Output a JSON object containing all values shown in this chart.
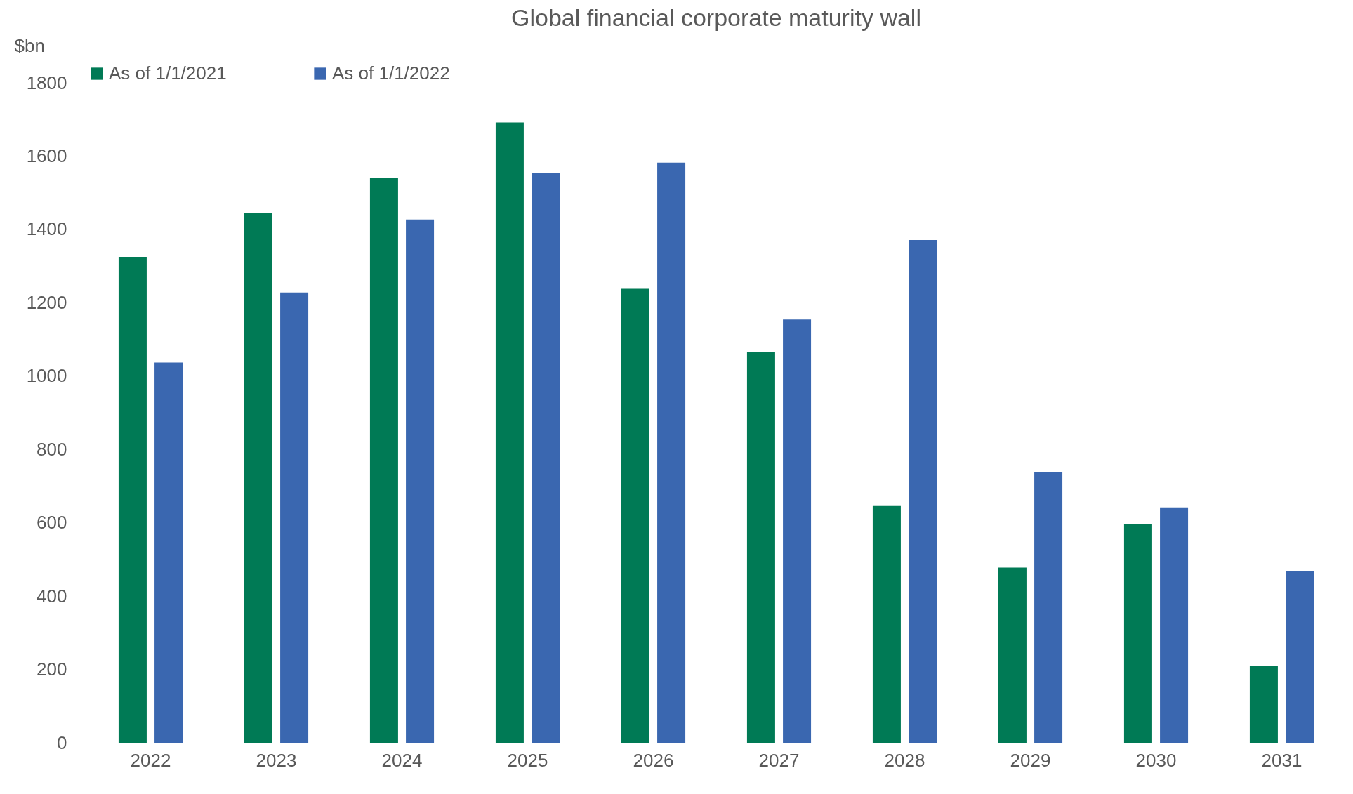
{
  "chart_data": {
    "type": "bar",
    "title": "Global financial corporate maturity wall",
    "ylabel": "$bn",
    "categories": [
      "2022",
      "2023",
      "2024",
      "2025",
      "2026",
      "2027",
      "2028",
      "2029",
      "2030",
      "2031"
    ],
    "series": [
      {
        "name": "As of 1/1/2021",
        "color": "#007a55",
        "values": [
          1325,
          1445,
          1540,
          1692,
          1240,
          1066,
          646,
          478,
          597,
          209
        ]
      },
      {
        "name": "As of 1/1/2022",
        "color": "#3a67b0",
        "values": [
          1037,
          1228,
          1427,
          1553,
          1582,
          1154,
          1371,
          738,
          642,
          469
        ]
      }
    ],
    "ylim": [
      0,
      1800
    ],
    "yticks": [
      0,
      200,
      400,
      600,
      800,
      1000,
      1200,
      1400,
      1600,
      1800
    ],
    "grid": false,
    "legend": "top"
  }
}
